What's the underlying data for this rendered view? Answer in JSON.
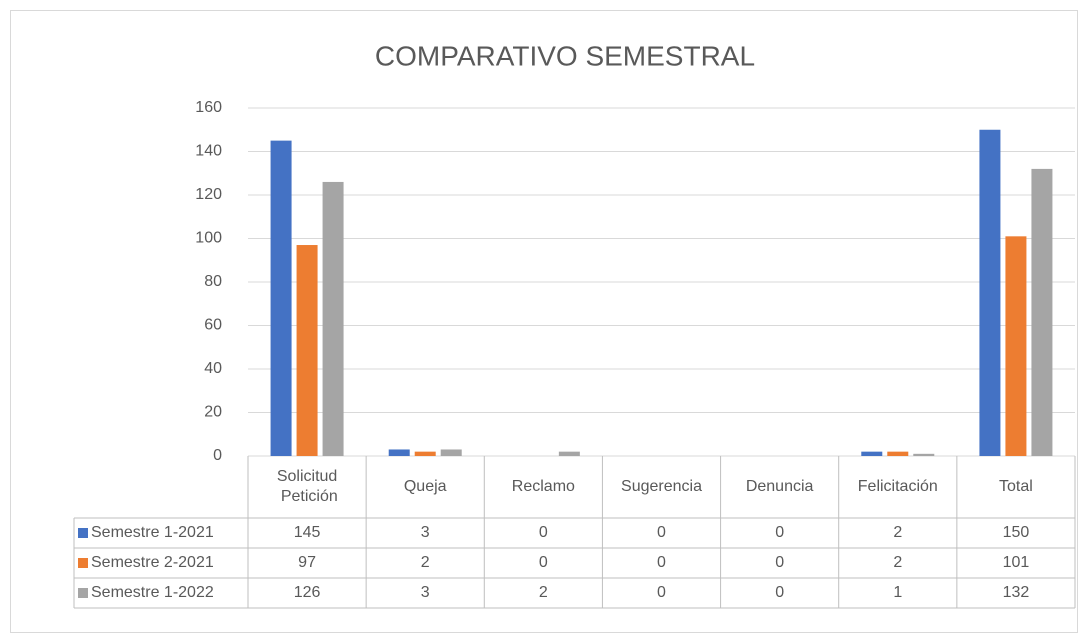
{
  "chart_data": {
    "type": "bar",
    "title": "COMPARATIVO SEMESTRAL",
    "categories": [
      "Solicitud Petición",
      "Queja",
      "Reclamo",
      "Sugerencia",
      "Denuncia",
      "Felicitación",
      "Total"
    ],
    "series": [
      {
        "name": "Semestre 1-2021",
        "color": "#4472c4",
        "values": [
          145,
          3,
          0,
          0,
          0,
          2,
          150
        ]
      },
      {
        "name": "Semestre 2-2021",
        "color": "#ed7d31",
        "values": [
          97,
          2,
          0,
          0,
          0,
          2,
          101
        ]
      },
      {
        "name": "Semestre 1-2022",
        "color": "#a5a5a5",
        "values": [
          126,
          3,
          2,
          0,
          0,
          1,
          132
        ]
      }
    ],
    "ylim": [
      0,
      160
    ],
    "yticks": [
      0,
      20,
      40,
      60,
      80,
      100,
      120,
      140,
      160
    ],
    "grid": true,
    "data_table": true
  }
}
